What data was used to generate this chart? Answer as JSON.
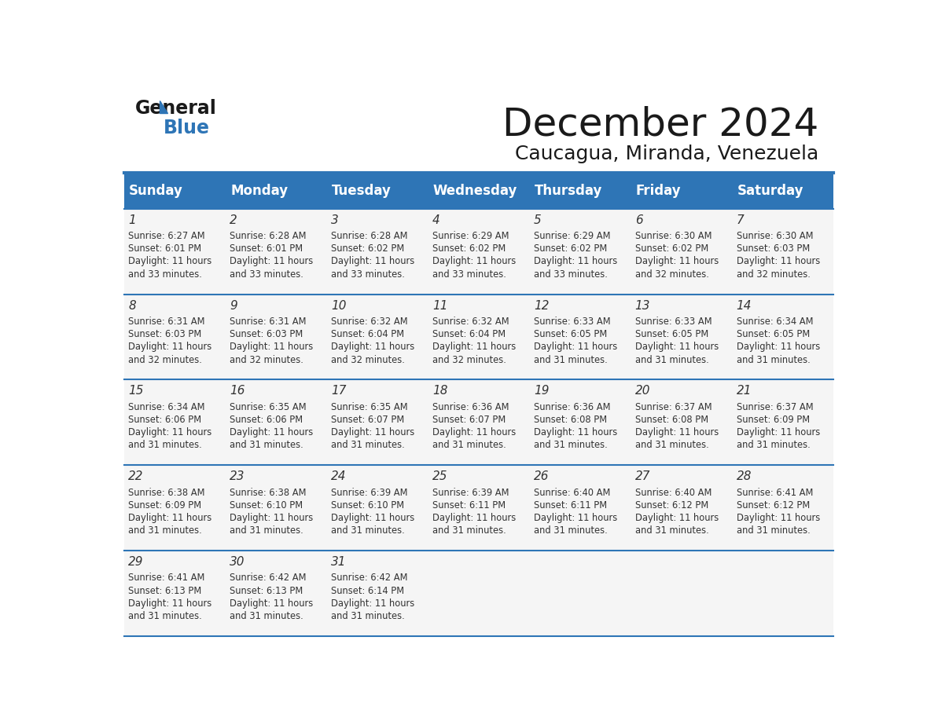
{
  "title": "December 2024",
  "subtitle": "Caucagua, Miranda, Venezuela",
  "header_bg_color": "#2E75B6",
  "header_text_color": "#FFFFFF",
  "day_names": [
    "Sunday",
    "Monday",
    "Tuesday",
    "Wednesday",
    "Thursday",
    "Friday",
    "Saturday"
  ],
  "bg_color": "#FFFFFF",
  "cell_bg_color": "#F5F5F5",
  "grid_line_color": "#2E75B6",
  "day_num_color": "#333333",
  "cell_text_color": "#333333",
  "logo_general_color": "#1A1A1A",
  "logo_blue_color": "#2E75B6",
  "weeks": [
    [
      {
        "day": 1,
        "sunrise": "6:27 AM",
        "sunset": "6:01 PM",
        "daylight": "11 hours and 33 minutes."
      },
      {
        "day": 2,
        "sunrise": "6:28 AM",
        "sunset": "6:01 PM",
        "daylight": "11 hours and 33 minutes."
      },
      {
        "day": 3,
        "sunrise": "6:28 AM",
        "sunset": "6:02 PM",
        "daylight": "11 hours and 33 minutes."
      },
      {
        "day": 4,
        "sunrise": "6:29 AM",
        "sunset": "6:02 PM",
        "daylight": "11 hours and 33 minutes."
      },
      {
        "day": 5,
        "sunrise": "6:29 AM",
        "sunset": "6:02 PM",
        "daylight": "11 hours and 33 minutes."
      },
      {
        "day": 6,
        "sunrise": "6:30 AM",
        "sunset": "6:02 PM",
        "daylight": "11 hours and 32 minutes."
      },
      {
        "day": 7,
        "sunrise": "6:30 AM",
        "sunset": "6:03 PM",
        "daylight": "11 hours and 32 minutes."
      }
    ],
    [
      {
        "day": 8,
        "sunrise": "6:31 AM",
        "sunset": "6:03 PM",
        "daylight": "11 hours and 32 minutes."
      },
      {
        "day": 9,
        "sunrise": "6:31 AM",
        "sunset": "6:03 PM",
        "daylight": "11 hours and 32 minutes."
      },
      {
        "day": 10,
        "sunrise": "6:32 AM",
        "sunset": "6:04 PM",
        "daylight": "11 hours and 32 minutes."
      },
      {
        "day": 11,
        "sunrise": "6:32 AM",
        "sunset": "6:04 PM",
        "daylight": "11 hours and 32 minutes."
      },
      {
        "day": 12,
        "sunrise": "6:33 AM",
        "sunset": "6:05 PM",
        "daylight": "11 hours and 31 minutes."
      },
      {
        "day": 13,
        "sunrise": "6:33 AM",
        "sunset": "6:05 PM",
        "daylight": "11 hours and 31 minutes."
      },
      {
        "day": 14,
        "sunrise": "6:34 AM",
        "sunset": "6:05 PM",
        "daylight": "11 hours and 31 minutes."
      }
    ],
    [
      {
        "day": 15,
        "sunrise": "6:34 AM",
        "sunset": "6:06 PM",
        "daylight": "11 hours and 31 minutes."
      },
      {
        "day": 16,
        "sunrise": "6:35 AM",
        "sunset": "6:06 PM",
        "daylight": "11 hours and 31 minutes."
      },
      {
        "day": 17,
        "sunrise": "6:35 AM",
        "sunset": "6:07 PM",
        "daylight": "11 hours and 31 minutes."
      },
      {
        "day": 18,
        "sunrise": "6:36 AM",
        "sunset": "6:07 PM",
        "daylight": "11 hours and 31 minutes."
      },
      {
        "day": 19,
        "sunrise": "6:36 AM",
        "sunset": "6:08 PM",
        "daylight": "11 hours and 31 minutes."
      },
      {
        "day": 20,
        "sunrise": "6:37 AM",
        "sunset": "6:08 PM",
        "daylight": "11 hours and 31 minutes."
      },
      {
        "day": 21,
        "sunrise": "6:37 AM",
        "sunset": "6:09 PM",
        "daylight": "11 hours and 31 minutes."
      }
    ],
    [
      {
        "day": 22,
        "sunrise": "6:38 AM",
        "sunset": "6:09 PM",
        "daylight": "11 hours and 31 minutes."
      },
      {
        "day": 23,
        "sunrise": "6:38 AM",
        "sunset": "6:10 PM",
        "daylight": "11 hours and 31 minutes."
      },
      {
        "day": 24,
        "sunrise": "6:39 AM",
        "sunset": "6:10 PM",
        "daylight": "11 hours and 31 minutes."
      },
      {
        "day": 25,
        "sunrise": "6:39 AM",
        "sunset": "6:11 PM",
        "daylight": "11 hours and 31 minutes."
      },
      {
        "day": 26,
        "sunrise": "6:40 AM",
        "sunset": "6:11 PM",
        "daylight": "11 hours and 31 minutes."
      },
      {
        "day": 27,
        "sunrise": "6:40 AM",
        "sunset": "6:12 PM",
        "daylight": "11 hours and 31 minutes."
      },
      {
        "day": 28,
        "sunrise": "6:41 AM",
        "sunset": "6:12 PM",
        "daylight": "11 hours and 31 minutes."
      }
    ],
    [
      {
        "day": 29,
        "sunrise": "6:41 AM",
        "sunset": "6:13 PM",
        "daylight": "11 hours and 31 minutes."
      },
      {
        "day": 30,
        "sunrise": "6:42 AM",
        "sunset": "6:13 PM",
        "daylight": "11 hours and 31 minutes."
      },
      {
        "day": 31,
        "sunrise": "6:42 AM",
        "sunset": "6:14 PM",
        "daylight": "11 hours and 31 minutes."
      },
      null,
      null,
      null,
      null
    ]
  ]
}
